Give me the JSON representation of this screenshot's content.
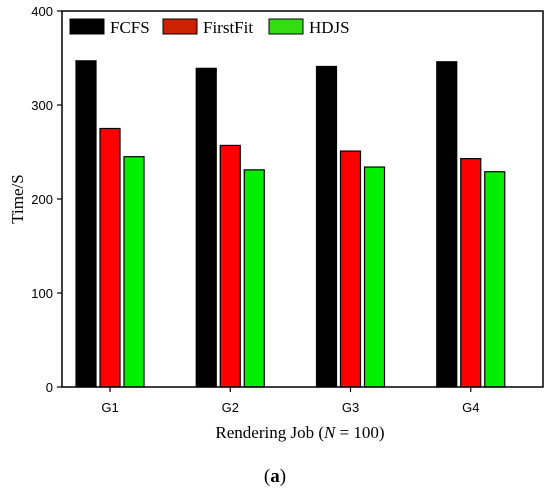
{
  "chart_data": {
    "type": "bar",
    "categories": [
      "G1",
      "G2",
      "G3",
      "G4"
    ],
    "series": [
      {
        "name": "FCFS",
        "values": [
          347,
          339,
          341,
          346
        ],
        "color": "#000000"
      },
      {
        "name": "FirstFit",
        "values": [
          275,
          257,
          251,
          243
        ],
        "color": "#ff0000"
      },
      {
        "name": "HDJS",
        "values": [
          245,
          231,
          234,
          229
        ],
        "color": "#00ee00"
      }
    ],
    "legend_swatch_colors": [
      "#000000",
      "#cc2200",
      "#33dd11"
    ],
    "ylim": [
      0,
      400
    ],
    "yticks": [
      0,
      100,
      200,
      300,
      400
    ],
    "ylabel": "Time/S",
    "xlabel": {
      "prefix": "Rendering Job (",
      "var": "N",
      "suffix": " = 100)"
    },
    "panel_label": {
      "open": "(",
      "letter": "a",
      "close": ")"
    },
    "legend_position": "top-left",
    "grid": false
  }
}
